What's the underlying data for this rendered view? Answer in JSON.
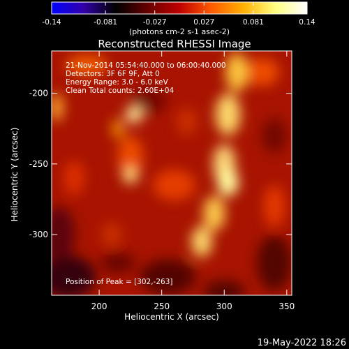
{
  "colorbar": {
    "ticks": [
      "-0.14",
      "-0.081",
      "-0.027",
      "0.027",
      "0.081",
      "0.14"
    ],
    "unit_label": "(photons cm-2 s-1 asec-2)",
    "range": [
      -0.14,
      0.14
    ],
    "colormap": [
      "#0000ff",
      "#3300aa",
      "#000000",
      "#660000",
      "#c00000",
      "#ff5a00",
      "#ffb000",
      "#ffff80",
      "#ffffff"
    ]
  },
  "chart_data": {
    "type": "heatmap",
    "title": "Reconstructed RHESSI Image",
    "xlabel": "Heliocentric X (arcsec)",
    "ylabel": "Heliocentric Y (arcsec)",
    "xlim": [
      162,
      354
    ],
    "ylim": [
      -343,
      -170
    ],
    "xticks": [
      200,
      250,
      300,
      350
    ],
    "yticks": [
      -200,
      -250,
      -300
    ],
    "annotations": [
      "21-Nov-2014 05:54:40.000 to 06:00:40.000",
      "Detectors: 3F 6F 9F, Att 0",
      "Energy Range: 3.0 - 6.0 keV",
      "Clean    Total counts: 2.60E+04"
    ],
    "peak_label": "Position of Peak = [302,-263]",
    "peak": [
      302,
      -263
    ]
  },
  "footer": {
    "timestamp": "19-May-2022 18:26"
  }
}
